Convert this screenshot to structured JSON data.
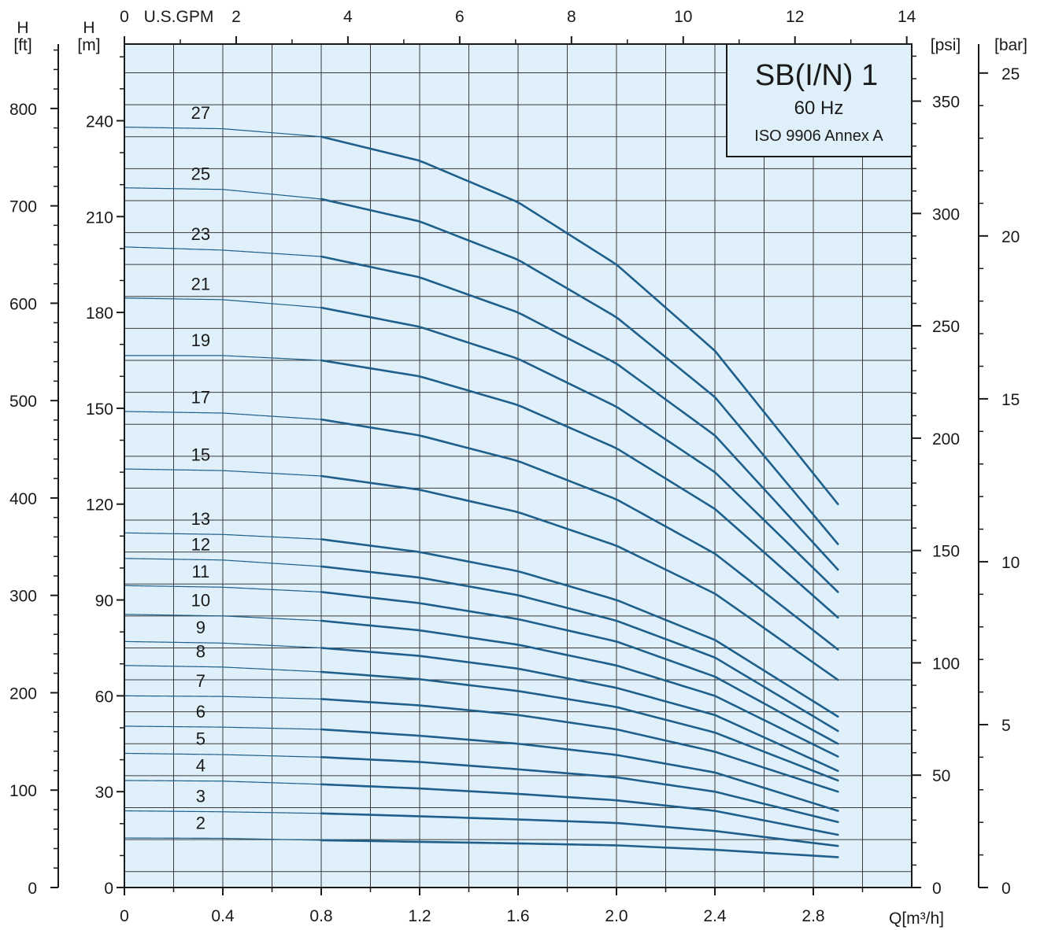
{
  "chart_data": {
    "type": "line",
    "title": "SB(I/N) 1",
    "subtitle": "60 Hz",
    "standard": "ISO 9906 Annex A",
    "x": {
      "label": "Q[m³/h]",
      "range": [
        0,
        3.2
      ],
      "ticks": [
        "0",
        "0.4",
        "0.8",
        "1.2",
        "1.6",
        "2.0",
        "2.4",
        "2.8"
      ],
      "tick_values": [
        0,
        0.4,
        0.8,
        1.2,
        1.6,
        2.0,
        2.4,
        2.8
      ]
    },
    "x_top": {
      "label": "U.S.GPM",
      "ticks": [
        "0",
        "2",
        "4",
        "6",
        "8",
        "10",
        "12",
        "14"
      ],
      "tick_values": [
        0,
        2,
        4,
        6,
        8,
        10,
        12,
        14
      ]
    },
    "y_m": {
      "label_line1": "H",
      "label_line2": "[m]",
      "range": [
        0,
        264
      ],
      "ticks": [
        "0",
        "30",
        "60",
        "90",
        "120",
        "150",
        "180",
        "210",
        "240"
      ],
      "tick_values": [
        0,
        30,
        60,
        90,
        120,
        150,
        180,
        210,
        240
      ]
    },
    "y_ft": {
      "label_line1": "H",
      "label_line2": "[ft]",
      "ticks": [
        "0",
        "100",
        "200",
        "300",
        "400",
        "500",
        "600",
        "700",
        "800"
      ],
      "tick_values": [
        0,
        100,
        200,
        300,
        400,
        500,
        600,
        700,
        800
      ]
    },
    "y_psi": {
      "label": "[psi]",
      "ticks": [
        "0",
        "50",
        "100",
        "150",
        "200",
        "250",
        "300",
        "350"
      ],
      "tick_values": [
        0,
        50,
        100,
        150,
        200,
        250,
        300,
        350
      ]
    },
    "y_bar": {
      "label": "[bar]",
      "ticks": [
        "0",
        "5",
        "10",
        "15",
        "20",
        "25"
      ],
      "tick_values": [
        0,
        5,
        10,
        15,
        20,
        25
      ]
    },
    "grid": true,
    "background_color": "#dff0fa",
    "line_color": "#1f5f8b",
    "q_start": 0,
    "q_thick_start": 0.8,
    "q_end": 2.9,
    "series": [
      {
        "name": "2",
        "label_q": 0.31,
        "values": [
          [
            0,
            15.5
          ],
          [
            0.4,
            15.4
          ],
          [
            0.8,
            14.8
          ],
          [
            1.2,
            14.3
          ],
          [
            1.6,
            13.8
          ],
          [
            2.0,
            13.2
          ],
          [
            2.4,
            11.8
          ],
          [
            2.9,
            9.5
          ]
        ]
      },
      {
        "name": "3",
        "label_q": 0.31,
        "values": [
          [
            0,
            24
          ],
          [
            0.4,
            23.7
          ],
          [
            0.8,
            23.2
          ],
          [
            1.2,
            22.3
          ],
          [
            1.6,
            21.3
          ],
          [
            2.0,
            20.2
          ],
          [
            2.4,
            17.7
          ],
          [
            2.9,
            13
          ]
        ]
      },
      {
        "name": "4",
        "label_q": 0.31,
        "values": [
          [
            0,
            33.5
          ],
          [
            0.4,
            33.3
          ],
          [
            0.8,
            32.3
          ],
          [
            1.2,
            31
          ],
          [
            1.6,
            29.3
          ],
          [
            2.0,
            27.3
          ],
          [
            2.4,
            24
          ],
          [
            2.9,
            16.5
          ]
        ]
      },
      {
        "name": "5",
        "label_q": 0.31,
        "values": [
          [
            0,
            42
          ],
          [
            0.4,
            41.6
          ],
          [
            0.8,
            40.8
          ],
          [
            1.2,
            39.3
          ],
          [
            1.6,
            37
          ],
          [
            2.0,
            34.5
          ],
          [
            2.4,
            30
          ],
          [
            2.9,
            20.5
          ]
        ]
      },
      {
        "name": "6",
        "label_q": 0.31,
        "values": [
          [
            0,
            50.5
          ],
          [
            0.4,
            50.2
          ],
          [
            0.8,
            49.5
          ],
          [
            1.2,
            47.5
          ],
          [
            1.6,
            45
          ],
          [
            2.0,
            41.5
          ],
          [
            2.4,
            36
          ],
          [
            2.9,
            24
          ]
        ]
      },
      {
        "name": "7",
        "label_q": 0.31,
        "values": [
          [
            0,
            60
          ],
          [
            0.4,
            59.8
          ],
          [
            0.8,
            59
          ],
          [
            1.2,
            57
          ],
          [
            1.6,
            54
          ],
          [
            2.0,
            49.5
          ],
          [
            2.4,
            42.5
          ],
          [
            2.9,
            30
          ]
        ]
      },
      {
        "name": "8",
        "label_q": 0.31,
        "values": [
          [
            0,
            69.5
          ],
          [
            0.4,
            69
          ],
          [
            0.8,
            67.5
          ],
          [
            1.2,
            65.2
          ],
          [
            1.6,
            61.5
          ],
          [
            2.0,
            56.5
          ],
          [
            2.4,
            48.5
          ],
          [
            2.9,
            33.5
          ]
        ]
      },
      {
        "name": "9",
        "label_q": 0.31,
        "values": [
          [
            0,
            77
          ],
          [
            0.4,
            76.5
          ],
          [
            0.8,
            75
          ],
          [
            1.2,
            72.5
          ],
          [
            1.6,
            68.5
          ],
          [
            2.0,
            62.5
          ],
          [
            2.4,
            54
          ],
          [
            2.9,
            36.5
          ]
        ]
      },
      {
        "name": "10",
        "label_q": 0.31,
        "values": [
          [
            0,
            85.5
          ],
          [
            0.4,
            85
          ],
          [
            0.8,
            83.5
          ],
          [
            1.2,
            80.5
          ],
          [
            1.6,
            76
          ],
          [
            2.0,
            69.5
          ],
          [
            2.4,
            60
          ],
          [
            2.9,
            41
          ]
        ]
      },
      {
        "name": "11",
        "label_q": 0.31,
        "values": [
          [
            0,
            94.5
          ],
          [
            0.4,
            94
          ],
          [
            0.8,
            92.5
          ],
          [
            1.2,
            89
          ],
          [
            1.6,
            84
          ],
          [
            2.0,
            77
          ],
          [
            2.4,
            66
          ],
          [
            2.9,
            45
          ]
        ]
      },
      {
        "name": "12",
        "label_q": 0.31,
        "values": [
          [
            0,
            103
          ],
          [
            0.4,
            102.5
          ],
          [
            0.8,
            100.5
          ],
          [
            1.2,
            97
          ],
          [
            1.6,
            91.5
          ],
          [
            2.0,
            83.5
          ],
          [
            2.4,
            72
          ],
          [
            2.9,
            49
          ]
        ]
      },
      {
        "name": "13",
        "label_q": 0.31,
        "values": [
          [
            0,
            111
          ],
          [
            0.4,
            110.5
          ],
          [
            0.8,
            109
          ],
          [
            1.2,
            105
          ],
          [
            1.6,
            99
          ],
          [
            2.0,
            90
          ],
          [
            2.4,
            77.5
          ],
          [
            2.9,
            53.5
          ]
        ]
      },
      {
        "name": "15",
        "label_q": 0.31,
        "values": [
          [
            0,
            131
          ],
          [
            0.4,
            130.5
          ],
          [
            0.8,
            128.8
          ],
          [
            1.2,
            124.5
          ],
          [
            1.6,
            117.5
          ],
          [
            2.0,
            107
          ],
          [
            2.4,
            92
          ],
          [
            2.9,
            65
          ]
        ]
      },
      {
        "name": "17",
        "label_q": 0.31,
        "values": [
          [
            0,
            149
          ],
          [
            0.4,
            148.5
          ],
          [
            0.8,
            146.5
          ],
          [
            1.2,
            141.5
          ],
          [
            1.6,
            133.5
          ],
          [
            2.0,
            121.5
          ],
          [
            2.4,
            104.5
          ],
          [
            2.9,
            74.5
          ]
        ]
      },
      {
        "name": "19",
        "label_q": 0.31,
        "values": [
          [
            0,
            166.5
          ],
          [
            0.4,
            166.5
          ],
          [
            0.8,
            165
          ],
          [
            1.2,
            160
          ],
          [
            1.6,
            151
          ],
          [
            2.0,
            137.5
          ],
          [
            2.4,
            118.5
          ],
          [
            2.9,
            84.5
          ]
        ]
      },
      {
        "name": "21",
        "label_q": 0.31,
        "values": [
          [
            0,
            184.5
          ],
          [
            0.4,
            184
          ],
          [
            0.8,
            181.5
          ],
          [
            1.2,
            175.5
          ],
          [
            1.6,
            165.5
          ],
          [
            2.0,
            150.5
          ],
          [
            2.4,
            130
          ],
          [
            2.9,
            92.5
          ]
        ]
      },
      {
        "name": "23",
        "label_q": 0.31,
        "values": [
          [
            0,
            200.5
          ],
          [
            0.4,
            199.5
          ],
          [
            0.8,
            197.5
          ],
          [
            1.2,
            191
          ],
          [
            1.6,
            180
          ],
          [
            2.0,
            164
          ],
          [
            2.4,
            141.5
          ],
          [
            2.9,
            99.5
          ]
        ]
      },
      {
        "name": "25",
        "label_q": 0.31,
        "values": [
          [
            0,
            219
          ],
          [
            0.4,
            218.5
          ],
          [
            0.8,
            215.5
          ],
          [
            1.2,
            208.5
          ],
          [
            1.6,
            196.5
          ],
          [
            2.0,
            178.5
          ],
          [
            2.4,
            153.5
          ],
          [
            2.9,
            107.5
          ]
        ]
      },
      {
        "name": "27",
        "label_q": 0.31,
        "values": [
          [
            0,
            238
          ],
          [
            0.4,
            237.5
          ],
          [
            0.8,
            235
          ],
          [
            1.2,
            227.5
          ],
          [
            1.6,
            214.5
          ],
          [
            2.0,
            195
          ],
          [
            2.4,
            168
          ],
          [
            2.9,
            120
          ]
        ]
      }
    ]
  }
}
